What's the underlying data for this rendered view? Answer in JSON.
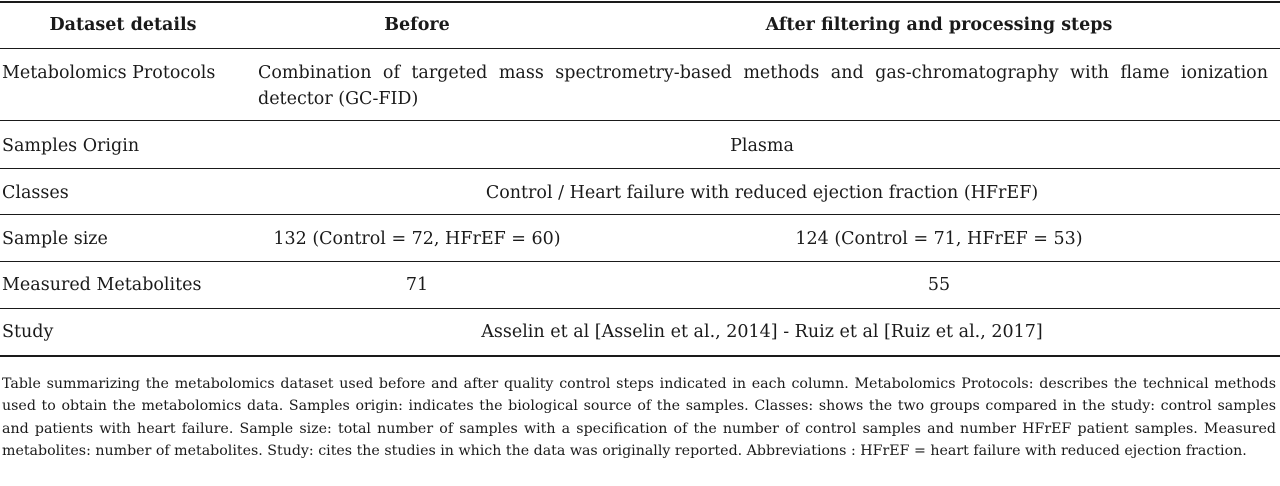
{
  "table": {
    "headers": [
      "Dataset details",
      "Before",
      "After filtering and processing steps"
    ],
    "rows": [
      {
        "label": "Metabolomics Protocols",
        "span": "Combination of targeted mass spectrometry-based methods and gas-chromatography with flame ionization detector (GC-FID)"
      },
      {
        "label": "Samples Origin",
        "span": "Plasma"
      },
      {
        "label": "Classes",
        "span": "Control / Heart failure with reduced ejection fraction (HFrEF)"
      },
      {
        "label": "Sample size",
        "before": "132 (Control = 72, HFrEF = 60)",
        "after": "124 (Control = 71, HFrEF = 53)"
      },
      {
        "label": "Measured Metabolites",
        "before": "71",
        "after": "55"
      },
      {
        "label": "Study",
        "span": "Asselin et al [Asselin et al., 2014] - Ruiz et al [Ruiz et al., 2017]"
      }
    ]
  },
  "caption": "Table summarizing the metabolomics dataset used before and after quality control steps indicated in each column. Metabolomics Protocols: describes the technical methods used to obtain the metabolomics data. Samples origin: indicates the biological source of the samples. Classes: shows the two groups compared in the study: control samples and patients with heart failure. Sample size: total number of samples with a specification of the number of control samples and number HFrEF patient samples. Measured metabolites: number of metabolites. Study: cites the studies in which the data was originally reported. Abbreviations : HFrEF = heart failure with reduced ejection fraction."
}
